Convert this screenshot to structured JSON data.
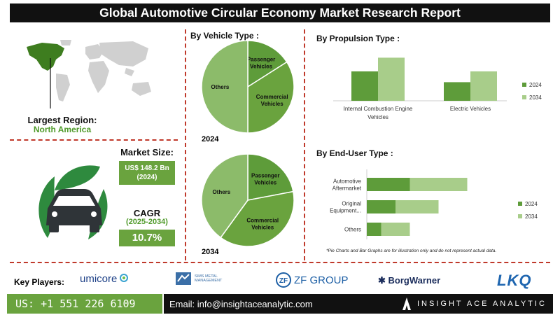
{
  "header": {
    "title": "Global Automotive Circular Economy Market Research Report"
  },
  "region": {
    "label": "Largest Region:",
    "value": "North America"
  },
  "market_size": {
    "label": "Market Size:",
    "value": "US$ 148.2 Bn",
    "year": "(2024)"
  },
  "cagr": {
    "label": "CAGR",
    "period": "(2025-2034)",
    "value": "10.7%"
  },
  "vehicle_type": {
    "title": "By Vehicle Type :",
    "year_2024": "2024",
    "year_2034": "2034"
  },
  "propulsion": {
    "title": "By Propulsion Type :"
  },
  "end_user": {
    "title": "By  End-User Type :"
  },
  "note": "*Pie Charts and Bar Graphs are for illustration only and do not represent actual data.",
  "key_players": {
    "label": "Key Players:",
    "logos": [
      "umicore",
      "SIMS METAL MANAGEMENT",
      "ZF GROUP",
      "BorgWarner",
      "LKQ"
    ]
  },
  "footer": {
    "phone": "US: +1 551 226 6109",
    "email": "Email: info@insightaceanalytic.com",
    "brand": "INSIGHT ACE ANALYTIC"
  },
  "colors": {
    "dark_green": "#5e9c3a",
    "light_green": "#a8cd8a",
    "mid_green": "#8cbb6a",
    "accent_red": "#c0392b"
  },
  "chart_data": [
    {
      "type": "pie",
      "title": "2024",
      "labels": [
        "Passenger Vehicles",
        "Commercial Vehicles",
        "Others"
      ],
      "values": [
        16,
        34,
        50
      ],
      "colors": [
        "#5e9c3a",
        "#6aa33e",
        "#8cbb6a"
      ]
    },
    {
      "type": "pie",
      "title": "2034",
      "labels": [
        "Passenger Vehicles",
        "Commercial Vehicles",
        "Others"
      ],
      "values": [
        22,
        38,
        40
      ],
      "colors": [
        "#5e9c3a",
        "#6aa33e",
        "#8cbb6a"
      ]
    },
    {
      "type": "bar",
      "categories": [
        "Internal Combustion Engine Vehicles",
        "Electric Vehicles"
      ],
      "series": [
        {
          "name": "2024",
          "values": [
            3.0,
            1.9
          ]
        },
        {
          "name": "2034",
          "values": [
            4.4,
            3.0
          ]
        }
      ],
      "ylim": [
        0,
        5
      ]
    },
    {
      "type": "bar",
      "orientation": "horizontal",
      "stacked": true,
      "categories": [
        "Automotive Aftermarket",
        "Original Equipment...",
        "Others"
      ],
      "series": [
        {
          "name": "2024",
          "values": [
            3.0,
            2.0,
            1.0
          ]
        },
        {
          "name": "2034",
          "values": [
            4.0,
            3.0,
            2.0
          ]
        }
      ],
      "xlim": [
        0,
        10
      ]
    }
  ]
}
